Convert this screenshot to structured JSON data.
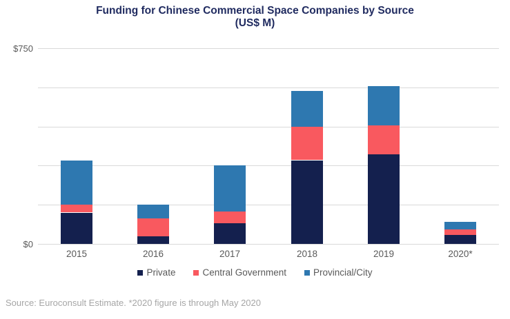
{
  "title": {
    "line1": "Funding for Chinese Commercial Space Companies by Source",
    "line2": "(US$ M)"
  },
  "y_axis": {
    "top_label": "$750",
    "bottom_label": "$0"
  },
  "source_note": "Source: Euroconsult Estimate. *2020 figure is through May 2020",
  "colors": {
    "title_text": "#202B60",
    "axis_text": "#595959",
    "legend_text": "#595959",
    "gridline": "#D9D9D9",
    "source_text": "#A6A6A6",
    "private": "#14204E",
    "central_government": "#F9595F",
    "provincial_city": "#2E78B0"
  },
  "chart_data": {
    "type": "bar",
    "stacked": true,
    "title": "Funding for Chinese Commercial Space Companies by Source (US$ M)",
    "categories": [
      "2015",
      "2016",
      "2017",
      "2018",
      "2019",
      "2020*"
    ],
    "series": [
      {
        "name": "Private",
        "color_key": "private",
        "values": [
          120,
          30,
          78,
          320,
          345,
          35
        ]
      },
      {
        "name": "Central Government",
        "color_key": "central_government",
        "values": [
          30,
          68,
          46,
          128,
          110,
          20
        ]
      },
      {
        "name": "Provincial/City",
        "color_key": "provincial_city",
        "values": [
          170,
          53,
          177,
          138,
          150,
          30
        ]
      }
    ],
    "ylim": [
      0,
      750
    ],
    "gridline_step": 150,
    "ytick_labels_shown": [
      "$750",
      "$0"
    ],
    "grid": true,
    "legend_position": "bottom"
  }
}
